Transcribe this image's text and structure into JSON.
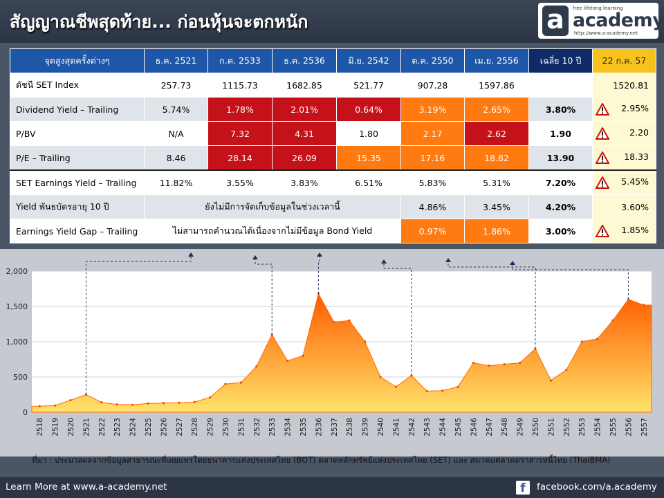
{
  "title": "สัญญาณชีพสุดท้าย... ก่อนหุ้นจะตกหนัก",
  "logo": {
    "letter": "a",
    "word": "academy",
    "tagline": "free lifelong learning",
    "url": "http://www.a-academy.net"
  },
  "table": {
    "headers": [
      "จุดสูงสุดครั้งต่างๆ",
      "ธ.ค. 2521",
      "ก.ค. 2533",
      "ธ.ค. 2536",
      "มิ.ย. 2542",
      "ต.ค. 2550",
      "เม.ย. 2556",
      "เฉลี่ย 10 ปี",
      "22 ก.ค. 57"
    ],
    "rows": [
      {
        "label": "ดัชนี SET Index",
        "cells": [
          "257.73",
          "1115.73",
          "1682.85",
          "521.77",
          "907.28",
          "1597.86"
        ],
        "avg": "",
        "now": "1520.81",
        "warn": false,
        "colors": [
          "",
          "",
          "",
          "",
          "",
          ""
        ]
      },
      {
        "label": "Dividend Yield – Trailing",
        "cells": [
          "5.74%",
          "1.78%",
          "2.01%",
          "0.64%",
          "3.19%",
          "2.65%"
        ],
        "avg": "3.80%",
        "now": "2.95%",
        "warn": true,
        "colors": [
          "",
          "red",
          "red",
          "red",
          "orange",
          "orange"
        ]
      },
      {
        "label": "P/BV",
        "cells": [
          "N/A",
          "7.32",
          "4.31",
          "1.80",
          "2.17",
          "2.62"
        ],
        "avg": "1.90",
        "now": "2.20",
        "warn": true,
        "colors": [
          "",
          "red",
          "red",
          "",
          "orange",
          "red"
        ]
      },
      {
        "label": "P/E – Trailing",
        "cells": [
          "8.46",
          "28.14",
          "26.09",
          "15.35",
          "17.16",
          "18.82"
        ],
        "avg": "13.90",
        "now": "18.33",
        "warn": true,
        "colors": [
          "",
          "red",
          "red",
          "orange",
          "orange",
          "orange"
        ]
      },
      {
        "label": "SET Earnings Yield – Trailing",
        "cells": [
          "11.82%",
          "3.55%",
          "3.83%",
          "6.51%",
          "5.83%",
          "5.31%"
        ],
        "avg": "7.20%",
        "now": "5.45%",
        "warn": true,
        "colors": [
          "",
          "",
          "",
          "",
          "",
          ""
        ]
      },
      {
        "label": "Yield พันธบัตรอายุ 10 ปี",
        "merged": "ยังไม่มีการจัดเก็บข้อมูลในช่วงเวลานี้",
        "cells": [
          "4.86%",
          "3.45%"
        ],
        "avg": "4.20%",
        "now": "3.60%",
        "warn": false,
        "colors": [
          "",
          ""
        ]
      },
      {
        "label": "Earnings Yield Gap – Trailing",
        "merged": "ไม่สามารถคำนวณได้เนื่องจากไม่มีข้อมูล Bond Yield",
        "cells": [
          "0.97%",
          "1.86%"
        ],
        "avg": "3.00%",
        "now": "1.85%",
        "warn": true,
        "colors": [
          "orange",
          "orange"
        ]
      }
    ]
  },
  "chart_data": {
    "type": "area",
    "title": "",
    "xlabel": "",
    "ylabel": "",
    "ylim": [
      0,
      2000
    ],
    "yticks": [
      "0",
      "500",
      "1,000",
      "1,500",
      "2,000"
    ],
    "x": [
      "2518",
      "2519",
      "2520",
      "2521",
      "2522",
      "2523",
      "2524",
      "2525",
      "2526",
      "2527",
      "2528",
      "2529",
      "2530",
      "2531",
      "2532",
      "2533",
      "2534",
      "2535",
      "2536",
      "2537",
      "2538",
      "2539",
      "2540",
      "2541",
      "2542",
      "2543",
      "2544",
      "2545",
      "2546",
      "2547",
      "2548",
      "2549",
      "2550",
      "2551",
      "2552",
      "2553",
      "2554",
      "2555",
      "2556",
      "2557"
    ],
    "series": [
      {
        "values": [
          85,
          95,
          170,
          250,
          140,
          110,
          105,
          125,
          130,
          135,
          145,
          210,
          400,
          420,
          650,
          1100,
          730,
          800,
          1680,
          1280,
          1300,
          1000,
          500,
          360,
          520,
          300,
          305,
          360,
          700,
          660,
          680,
          700,
          900,
          450,
          600,
          1000,
          1040,
          1300,
          1600,
          1520
        ]
      }
    ],
    "peaks": [
      "2521",
      "2533",
      "2536",
      "2542",
      "2550",
      "2556"
    ],
    "color_low": "#ffe36a",
    "color_high": "#ff5b00"
  },
  "footnote": "ที่มา : ประมวลผลจากข้อมูลสาธารณะที่เผยแพร่โดยธนาคารแห่งประเทศไทย (BOT) ตลาดหลักทรัพย์แห่งประเทศไทย (SET) และ สมาคมตลาดตราสารหนี้ไทย (ThaiBMA)",
  "footer": {
    "learn": "Learn More at www.a-academy.net",
    "facebook": "facebook.com/a.academy",
    "fb_letter": "f"
  }
}
